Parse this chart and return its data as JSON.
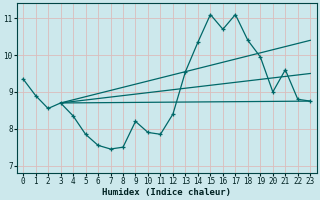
{
  "xlabel": "Humidex (Indice chaleur)",
  "background_color": "#cce8ec",
  "grid_color": "#dbbcbc",
  "line_color": "#006868",
  "xlim": [
    -0.5,
    23.5
  ],
  "ylim": [
    6.8,
    11.4
  ],
  "xticks": [
    0,
    1,
    2,
    3,
    4,
    5,
    6,
    7,
    8,
    9,
    10,
    11,
    12,
    13,
    14,
    15,
    16,
    17,
    18,
    19,
    20,
    21,
    22,
    23
  ],
  "yticks": [
    7,
    8,
    9,
    10,
    11
  ],
  "series1_x": [
    0,
    1,
    2,
    3,
    4,
    5,
    6,
    7,
    8,
    9,
    10,
    11,
    12,
    13,
    14,
    15,
    16,
    17,
    18,
    19,
    20,
    21,
    22,
    23
  ],
  "series1_y": [
    9.35,
    8.9,
    8.55,
    8.7,
    8.35,
    7.85,
    7.55,
    7.45,
    7.5,
    8.2,
    7.9,
    7.85,
    8.4,
    9.55,
    10.35,
    11.1,
    10.7,
    11.1,
    10.4,
    9.95,
    9.0,
    9.6,
    8.8,
    8.75
  ],
  "line1_x": [
    3,
    23
  ],
  "line1_y": [
    8.7,
    8.75
  ],
  "line2_x": [
    3,
    23
  ],
  "line2_y": [
    8.7,
    9.5
  ],
  "line3_x": [
    3,
    23
  ],
  "line3_y": [
    8.7,
    10.4
  ]
}
